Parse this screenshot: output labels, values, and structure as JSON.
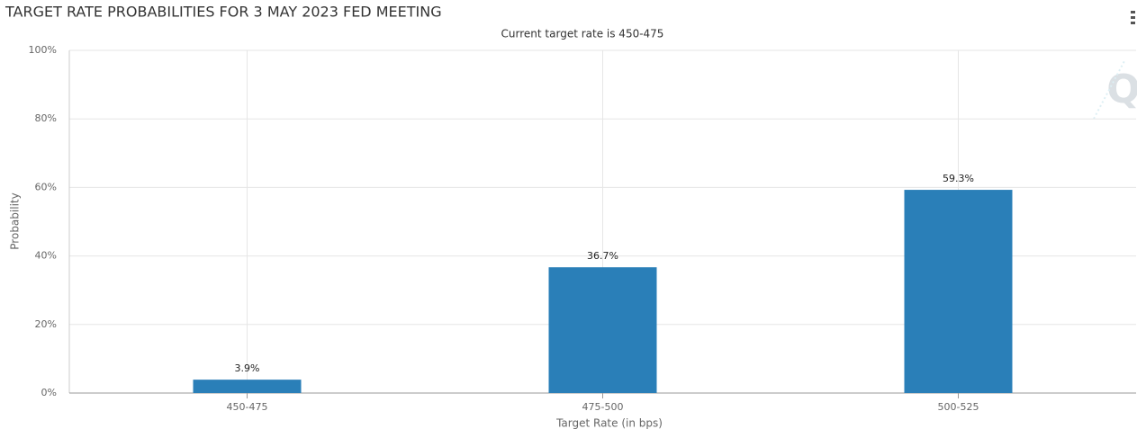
{
  "chart_data": {
    "type": "bar",
    "title": "TARGET RATE PROBABILITIES FOR 3 MAY 2023 FED MEETING",
    "subtitle": "Current target rate is 450-475",
    "x_label": "Target Rate (in bps)",
    "y_label": "Probability",
    "categories": [
      "450-475",
      "475-500",
      "500-525"
    ],
    "values": [
      3.9,
      36.7,
      59.3
    ],
    "value_labels": [
      "3.9%",
      "36.7%",
      "59.3%"
    ],
    "color": "#2a7fb8",
    "ylim": [
      0,
      100
    ],
    "yticks": [
      {
        "value": 0,
        "label": "0%"
      },
      {
        "value": 20,
        "label": "20%"
      },
      {
        "value": 40,
        "label": "40%"
      },
      {
        "value": 60,
        "label": "60%"
      },
      {
        "value": 80,
        "label": "80%"
      },
      {
        "value": 100,
        "label": "100%"
      }
    ],
    "grid": true
  }
}
